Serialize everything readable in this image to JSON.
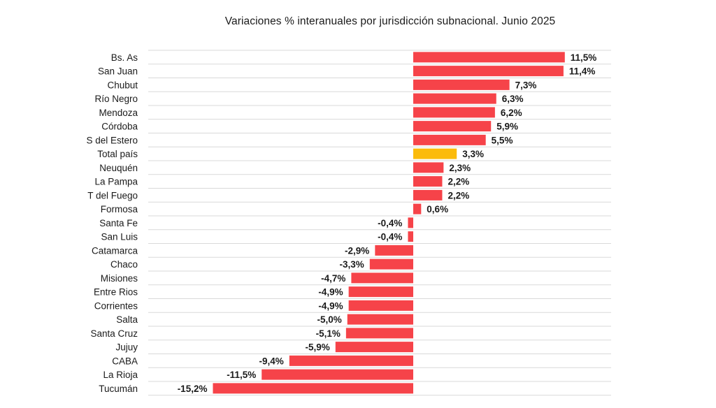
{
  "chart_data": {
    "type": "bar",
    "orientation": "horizontal",
    "title": "Variaciones % interanuales por jurisdicción subnacional. Junio 2025",
    "xlabel": "",
    "ylabel": "",
    "unit": "%",
    "categories": [
      "Bs. As",
      "San Juan",
      "Chubut",
      "Río Negro",
      "Mendoza",
      "Córdoba",
      "S del Estero",
      "Total país",
      "Neuquén",
      "La Pampa",
      "T del Fuego",
      "Formosa",
      "Santa Fe",
      "San Luis",
      "Catamarca",
      "Chaco",
      "Misiones",
      "Entre Rios",
      "Corrientes",
      "Salta",
      "Santa Cruz",
      "Jujuy",
      "CABA",
      "La Rioja",
      "Tucumán"
    ],
    "values": [
      11.5,
      11.4,
      7.3,
      6.3,
      6.2,
      5.9,
      5.5,
      3.3,
      2.3,
      2.2,
      2.2,
      0.6,
      -0.4,
      -0.4,
      -2.9,
      -3.3,
      -4.7,
      -4.9,
      -4.9,
      -5.0,
      -5.1,
      -5.9,
      -9.4,
      -11.5,
      -15.2
    ],
    "value_labels": [
      "11,5%",
      "11,4%",
      "7,3%",
      "6,3%",
      "6,2%",
      "5,9%",
      "5,5%",
      "3,3%",
      "2,3%",
      "2,2%",
      "2,2%",
      "0,6%",
      "-0,4%",
      "-0,4%",
      "-2,9%",
      "-3,3%",
      "-4,7%",
      "-4,9%",
      "-4,9%",
      "-5,0%",
      "-5,1%",
      "-5,9%",
      "-9,4%",
      "-11,5%",
      "-15,2%"
    ],
    "highlight_category": "Total país",
    "xlim": [
      -15.2,
      11.5
    ],
    "grid": true,
    "legend": "none"
  },
  "colors": {
    "bar": "#f64349",
    "highlight": "#fbbb0a",
    "grid": "#d9d9d9",
    "text": "#1a1a1a"
  }
}
